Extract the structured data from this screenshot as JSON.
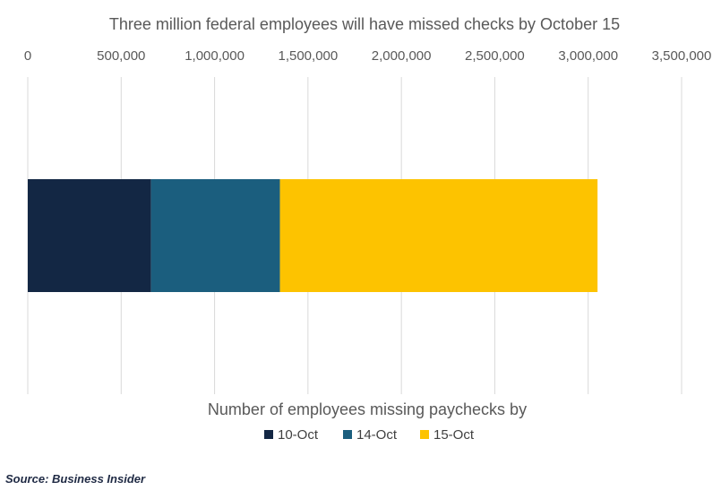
{
  "chart_data": {
    "type": "bar",
    "orientation": "horizontal",
    "stacked": true,
    "title": "Three million federal employees will have missed checks by October 15",
    "xlabel": "Number of employees missing paychecks by",
    "ylabel": "",
    "xlim": [
      0,
      3500000
    ],
    "ticks": [
      0,
      500000,
      1000000,
      1500000,
      2000000,
      2500000,
      3000000,
      3500000
    ],
    "tick_labels": [
      "0",
      "500,000",
      "1,000,000",
      "1,500,000",
      "2,000,000",
      "2,500,000",
      "3,000,000",
      "3,500,000"
    ],
    "axis_position": "top",
    "grid": true,
    "legend_position": "bottom",
    "categories": [
      ""
    ],
    "series": [
      {
        "name": "10-Oct",
        "values": [
          660000
        ],
        "color": "#132744"
      },
      {
        "name": "14-Oct",
        "values": [
          690000
        ],
        "color": "#1b5e7e"
      },
      {
        "name": "15-Oct",
        "values": [
          1700000
        ],
        "color": "#fdc300"
      }
    ]
  },
  "footer": {
    "source": "Source: Business Insider"
  }
}
